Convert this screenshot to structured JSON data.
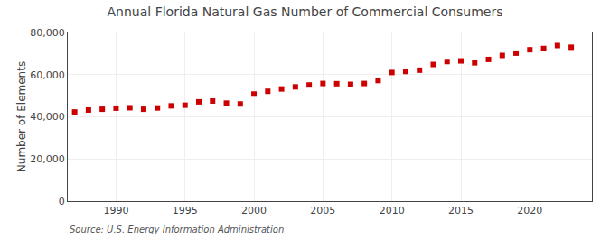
{
  "chart_data": {
    "type": "scatter",
    "title": "Annual Florida Natural Gas Number of Commercial Consumers",
    "ylabel": "Number of Elements",
    "source": "Source: U.S. Energy Information Administration",
    "color": "#cc0000",
    "marker": "square",
    "grid": true,
    "xlim": [
      1986.5,
      2024.5
    ],
    "xticks": [
      1990,
      1995,
      2000,
      2005,
      2010,
      2015,
      2020
    ],
    "ylim": [
      0,
      80000
    ],
    "yticks": [
      0,
      {
        "value": 20000,
        "label": "20,000"
      },
      {
        "value": 40000,
        "label": "40,000"
      },
      {
        "value": 60000,
        "label": "60,000"
      },
      {
        "value": 80000,
        "label": "80,000"
      }
    ],
    "x": [
      1987,
      1988,
      1989,
      1990,
      1991,
      1992,
      1993,
      1994,
      1995,
      1996,
      1997,
      1998,
      1999,
      2000,
      2001,
      2002,
      2003,
      2004,
      2005,
      2006,
      2007,
      2008,
      2009,
      2010,
      2011,
      2012,
      2013,
      2014,
      2015,
      2016,
      2017,
      2018,
      2019,
      2020,
      2021,
      2022,
      2023
    ],
    "values": [
      42300,
      43200,
      43600,
      44100,
      44300,
      43600,
      44200,
      45200,
      45500,
      47100,
      47500,
      46500,
      46100,
      50800,
      52100,
      53200,
      54200,
      55100,
      55800,
      55700,
      55400,
      55800,
      57200,
      61000,
      61500,
      62100,
      64800,
      66200,
      66500,
      65600,
      67200,
      69100,
      70200,
      71800,
      72400,
      73800,
      73000
    ]
  }
}
